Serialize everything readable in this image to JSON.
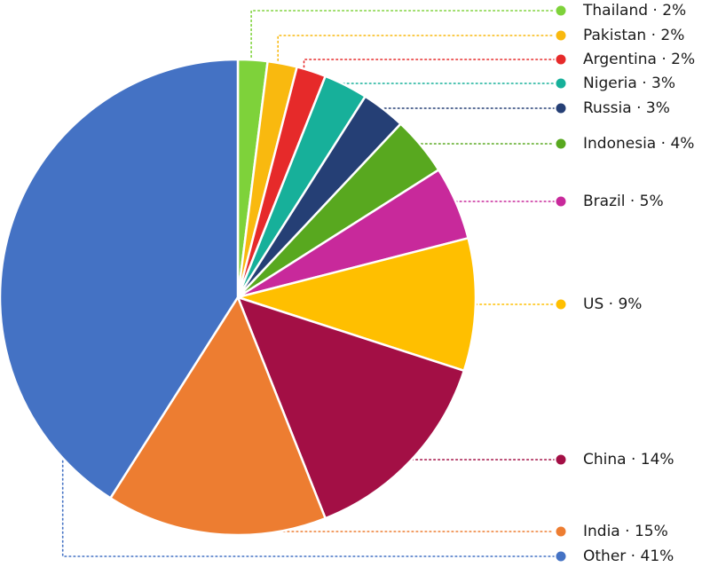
{
  "chart_data": {
    "type": "pie",
    "title": "",
    "separator": "·",
    "slices": [
      {
        "label": "Thailand",
        "value": 2,
        "display": "2%",
        "color": "#7ed23a"
      },
      {
        "label": "Pakistan",
        "value": 2,
        "display": "2%",
        "color": "#f9b90f"
      },
      {
        "label": "Argentina",
        "value": 2,
        "display": "2%",
        "color": "#e62a2a"
      },
      {
        "label": "Nigeria",
        "value": 3,
        "display": "3%",
        "color": "#17b09a"
      },
      {
        "label": "Russia",
        "value": 3,
        "display": "3%",
        "color": "#253f75"
      },
      {
        "label": "Indonesia",
        "value": 4,
        "display": "4%",
        "color": "#58a81f"
      },
      {
        "label": "Brazil",
        "value": 5,
        "display": "5%",
        "color": "#c8299b"
      },
      {
        "label": "US",
        "value": 9,
        "display": "9%",
        "color": "#ffbf00"
      },
      {
        "label": "China",
        "value": 14,
        "display": "14%",
        "color": "#a30f45"
      },
      {
        "label": "India",
        "value": 15,
        "display": "15%",
        "color": "#ed7d31"
      },
      {
        "label": "Other",
        "value": 41,
        "display": "41%",
        "color": "#4472c4"
      }
    ]
  }
}
